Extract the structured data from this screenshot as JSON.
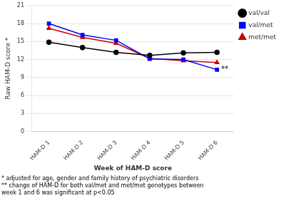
{
  "chart_data": {
    "type": "line",
    "categories": [
      "HAM-D 1",
      "HAM-D 2",
      "HAM-D 3",
      "HAM-D 4",
      "HAM-D 5",
      "HAM-D 6"
    ],
    "series": [
      {
        "name": "val/val",
        "color": "#000000",
        "marker": "circle",
        "values": [
          14.9,
          14.0,
          13.2,
          12.7,
          13.1,
          13.2
        ]
      },
      {
        "name": "val/met",
        "color": "#0000ff",
        "marker": "square",
        "values": [
          18.0,
          16.1,
          15.2,
          12.1,
          12.0,
          10.3
        ]
      },
      {
        "name": "met/met",
        "color": "#cc0000",
        "marker": "triangle",
        "values": [
          17.2,
          15.7,
          14.7,
          12.2,
          11.8,
          11.5
        ]
      }
    ],
    "ylabel": "Raw HAM-D score *",
    "xlabel": "Week of HAM-D score",
    "ylim": [
      0,
      21
    ],
    "yticks": [
      0,
      3,
      6,
      9,
      12,
      15,
      18,
      21
    ],
    "grid": "y",
    "legend": "right",
    "annotations": [
      {
        "text": "**",
        "x": "HAM-D 6",
        "y": 10.3
      }
    ],
    "footnotes": [
      "* adjusted for age, gender and family history of psychiatric disorders",
      "** change of HAM-D for both val/met and met/met genotypes between",
      "week 1 and 6 was significant at p<0.05"
    ]
  }
}
